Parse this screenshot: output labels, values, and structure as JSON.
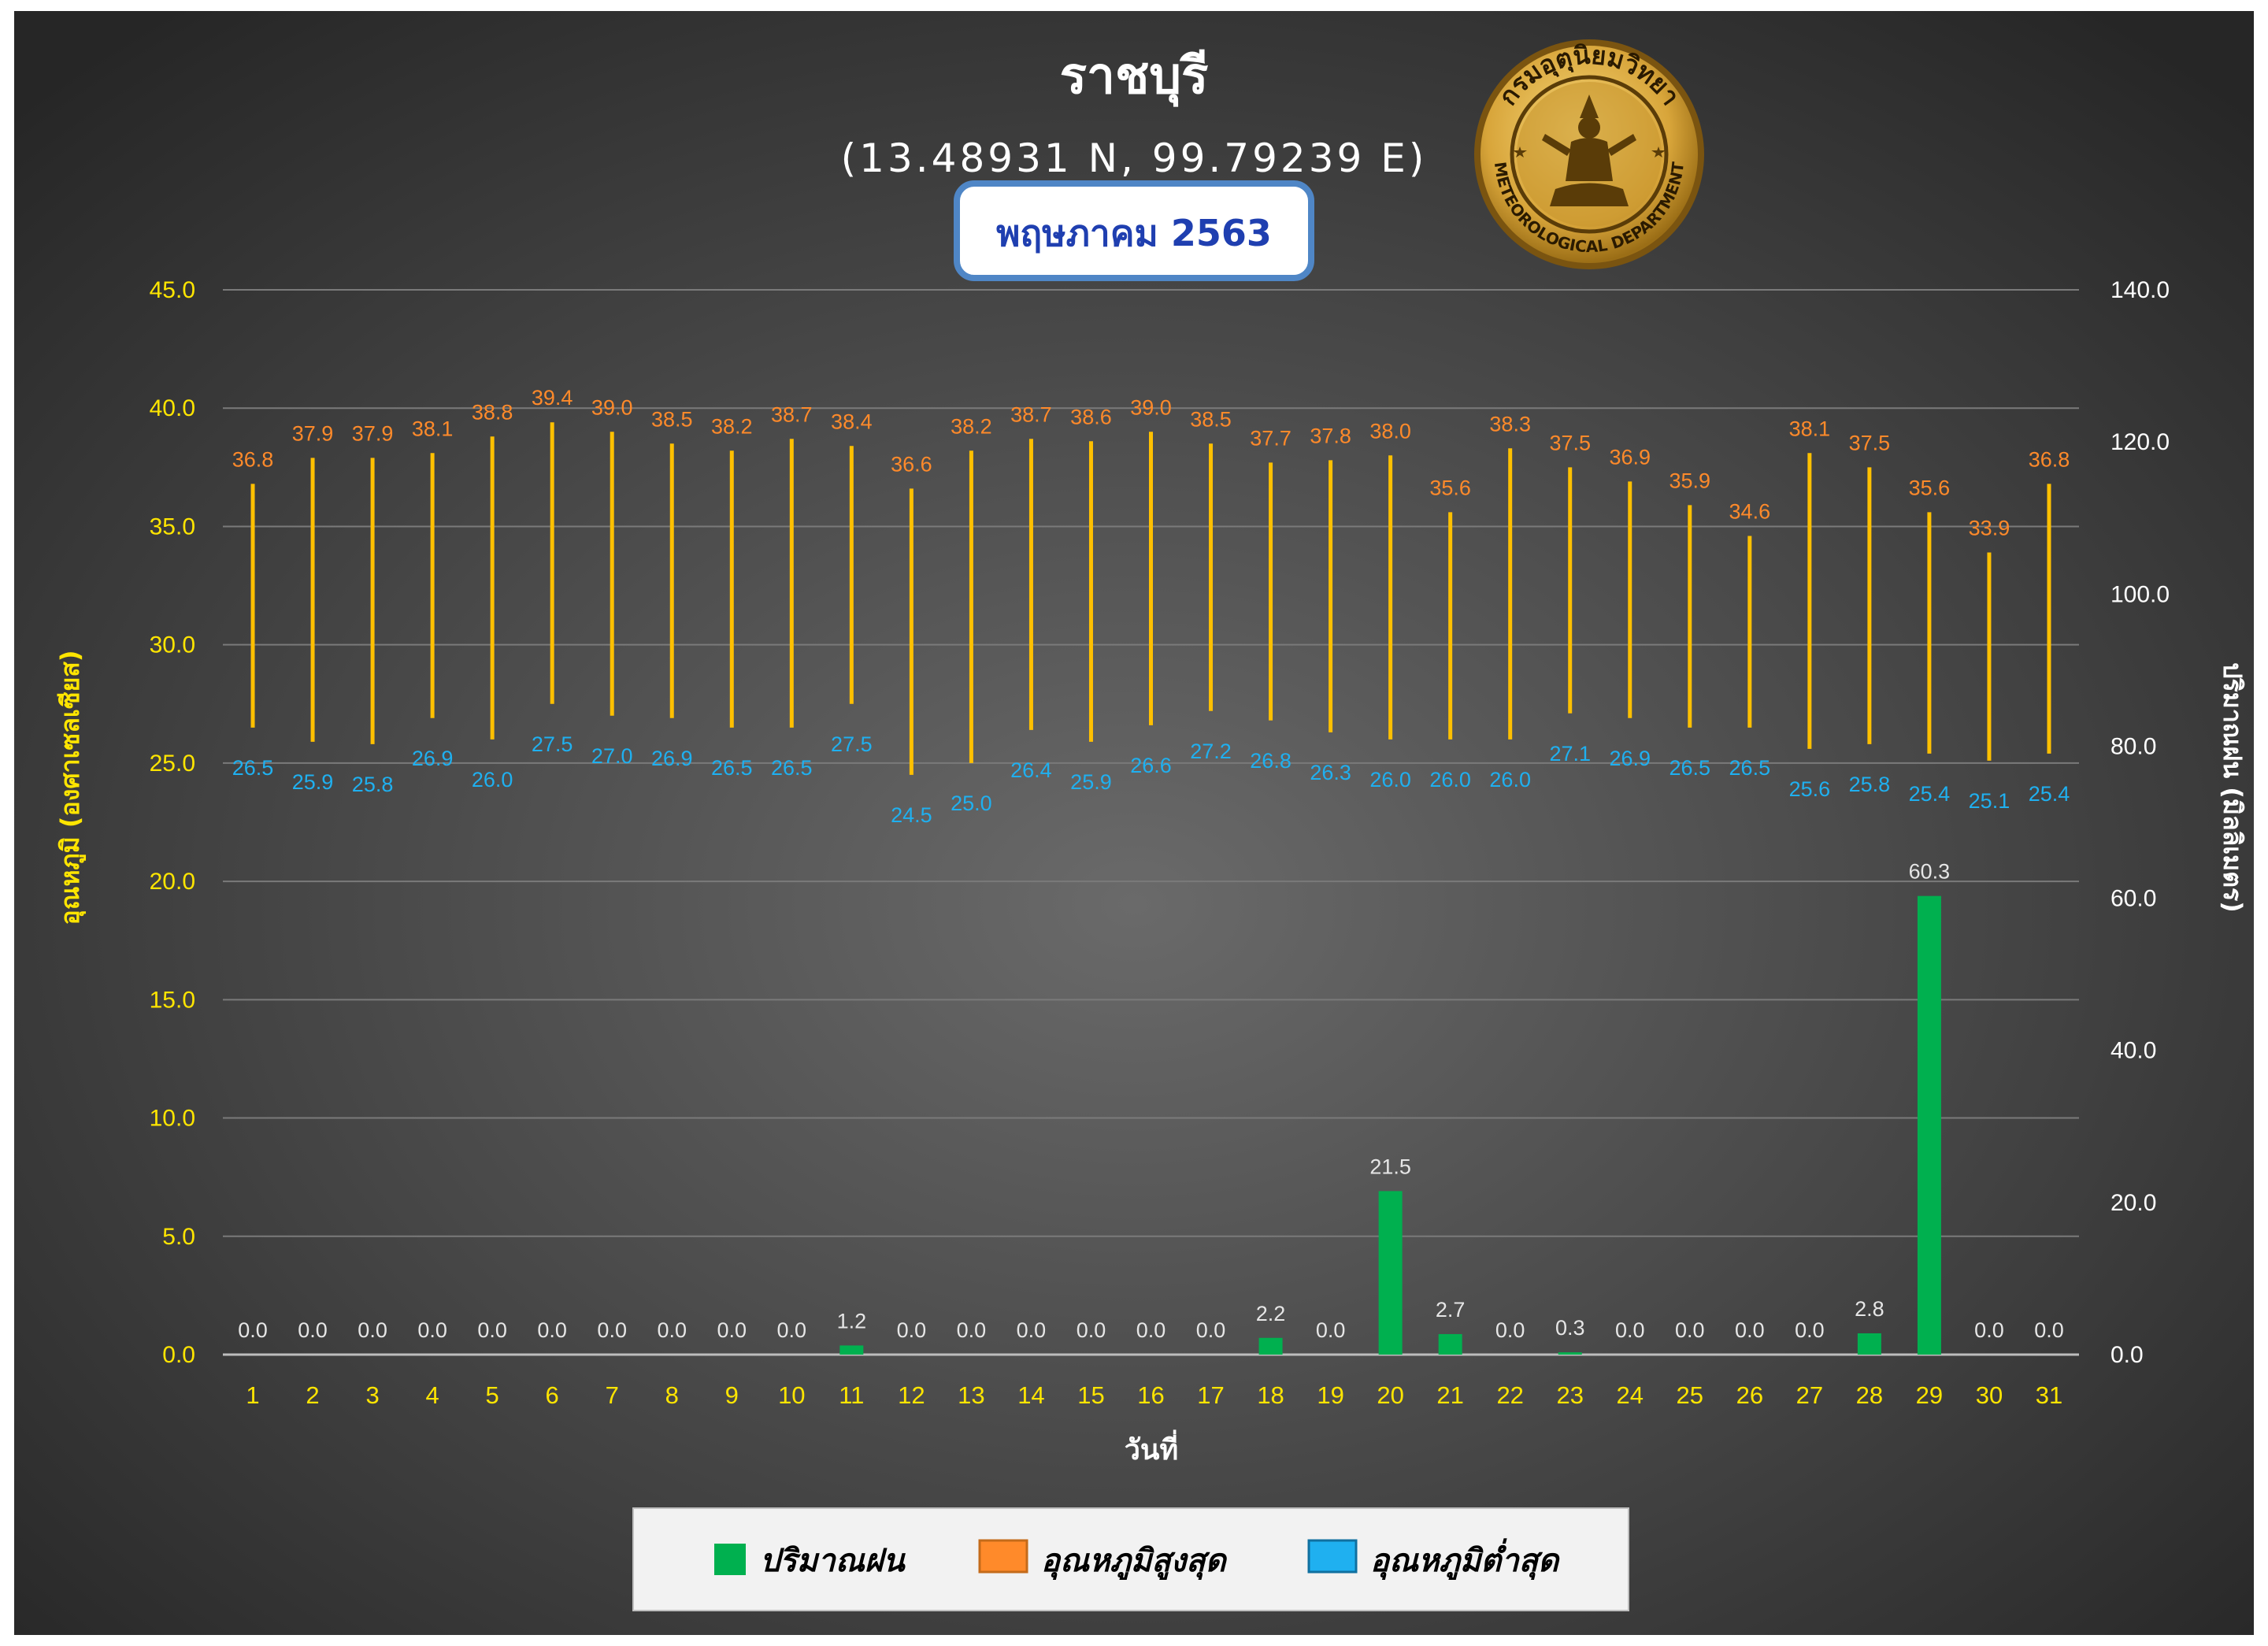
{
  "header": {
    "title": "ราชบุรี",
    "coords": "(13.48931 N, 99.79239 E)",
    "month": "พฤษภาคม 2563"
  },
  "logo": {
    "text_top": "กรมอุตุนิยมวิทยา",
    "text_bottom": "METEOROLOGICAL DEPARTMENT"
  },
  "colors": {
    "rain": "#00b04f",
    "max": "#ff8a2a",
    "min": "#1fb0f0",
    "range_line": "#ffc000",
    "left_axis": "#ffe500",
    "right_axis": "#ffffff"
  },
  "chart_data": {
    "type": "bar",
    "xlabel": "วันที่",
    "ylabel": "อุณหภูมิ (องศาเซลเซียส)",
    "y2label": "ปริมาณฝน (มิลลิเมตร)",
    "ylim": [
      0,
      45
    ],
    "y2lim": [
      0,
      140
    ],
    "yticks": [
      "0.0",
      "5.0",
      "10.0",
      "15.0",
      "20.0",
      "25.0",
      "30.0",
      "35.0",
      "40.0",
      "45.0"
    ],
    "y2ticks": [
      "0.0",
      "20.0",
      "40.0",
      "60.0",
      "80.0",
      "100.0",
      "120.0",
      "140.0"
    ],
    "categories": [
      "1",
      "2",
      "3",
      "4",
      "5",
      "6",
      "7",
      "8",
      "9",
      "10",
      "11",
      "12",
      "13",
      "14",
      "15",
      "16",
      "17",
      "18",
      "19",
      "20",
      "21",
      "22",
      "23",
      "24",
      "25",
      "26",
      "27",
      "28",
      "29",
      "30",
      "31"
    ],
    "grid": true,
    "legend_position": "bottom",
    "series": [
      {
        "name": "ปริมาณฝน",
        "axis": "right",
        "values": [
          0.0,
          0.0,
          0.0,
          0.0,
          0.0,
          0.0,
          0.0,
          0.0,
          0.0,
          0.0,
          1.2,
          0.0,
          0.0,
          0.0,
          0.0,
          0.0,
          0.0,
          2.2,
          0.0,
          21.5,
          2.7,
          0.0,
          0.3,
          0.0,
          0.0,
          0.0,
          0.0,
          2.8,
          60.3,
          0.0,
          0.0
        ]
      },
      {
        "name": "อุณหภูมิสูงสุด",
        "axis": "left",
        "values": [
          36.8,
          37.9,
          37.9,
          38.1,
          38.8,
          39.4,
          39.0,
          38.5,
          38.2,
          38.7,
          38.4,
          36.6,
          38.2,
          38.7,
          38.6,
          39.0,
          38.5,
          37.7,
          37.8,
          38.0,
          35.6,
          38.3,
          37.5,
          36.9,
          35.9,
          34.6,
          38.1,
          37.5,
          35.6,
          33.9,
          36.8
        ]
      },
      {
        "name": "อุณหภูมิต่ำสุด",
        "axis": "left",
        "values": [
          26.5,
          25.9,
          25.8,
          26.9,
          26.0,
          27.5,
          27.0,
          26.9,
          26.5,
          26.5,
          27.5,
          24.5,
          25.0,
          26.4,
          25.9,
          26.6,
          27.2,
          26.8,
          26.3,
          26.0,
          26.0,
          26.0,
          27.1,
          26.9,
          26.5,
          26.5,
          25.6,
          25.8,
          25.4,
          25.1,
          25.4
        ]
      }
    ]
  }
}
